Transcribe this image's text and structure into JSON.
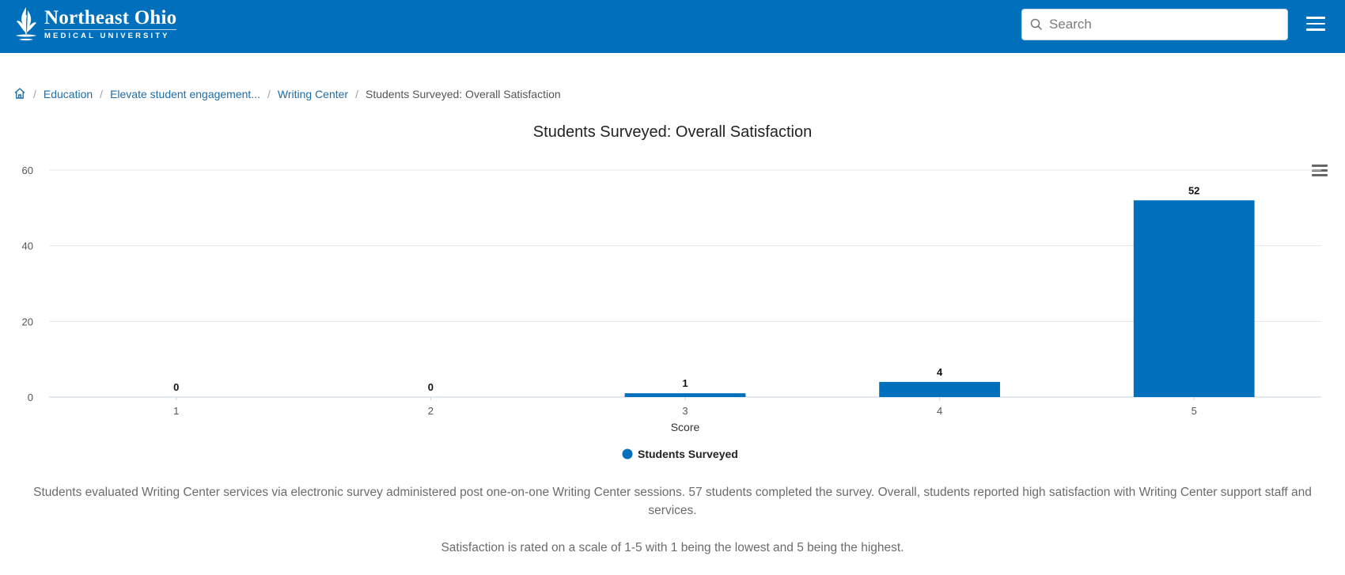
{
  "header": {
    "logo_name": "Northeast Ohio",
    "logo_sub": "MEDICAL UNIVERSITY",
    "search_placeholder": "Search"
  },
  "breadcrumb": {
    "items": [
      "Education",
      "Elevate student engagement...",
      "Writing Center"
    ],
    "current": "Students Surveyed: Overall Satisfaction"
  },
  "colors": {
    "brand": "#0070bd",
    "bar": "#0070bd",
    "link": "#1f6da8"
  },
  "chart_data": {
    "type": "bar",
    "title": "Students Surveyed: Overall Satisfaction",
    "categories": [
      "1",
      "2",
      "3",
      "4",
      "5"
    ],
    "series": [
      {
        "name": "Students Surveyed",
        "values": [
          0,
          0,
          1,
          4,
          52
        ]
      }
    ],
    "xlabel": "Score",
    "ylabel": "",
    "ylim": [
      0,
      60
    ],
    "yticks": [
      0,
      20,
      40,
      60
    ],
    "grid": true,
    "legend": "bottom-center"
  },
  "description": {
    "paragraph1": "Students evaluated Writing Center services via electronic survey administered post one-on-one Writing Center sessions. 57 students completed the survey. Overall, students reported high satisfaction with Writing Center support staff and services.",
    "paragraph2": "Satisfaction is rated on a scale of 1-5 with 1 being the lowest and 5 being the highest."
  }
}
